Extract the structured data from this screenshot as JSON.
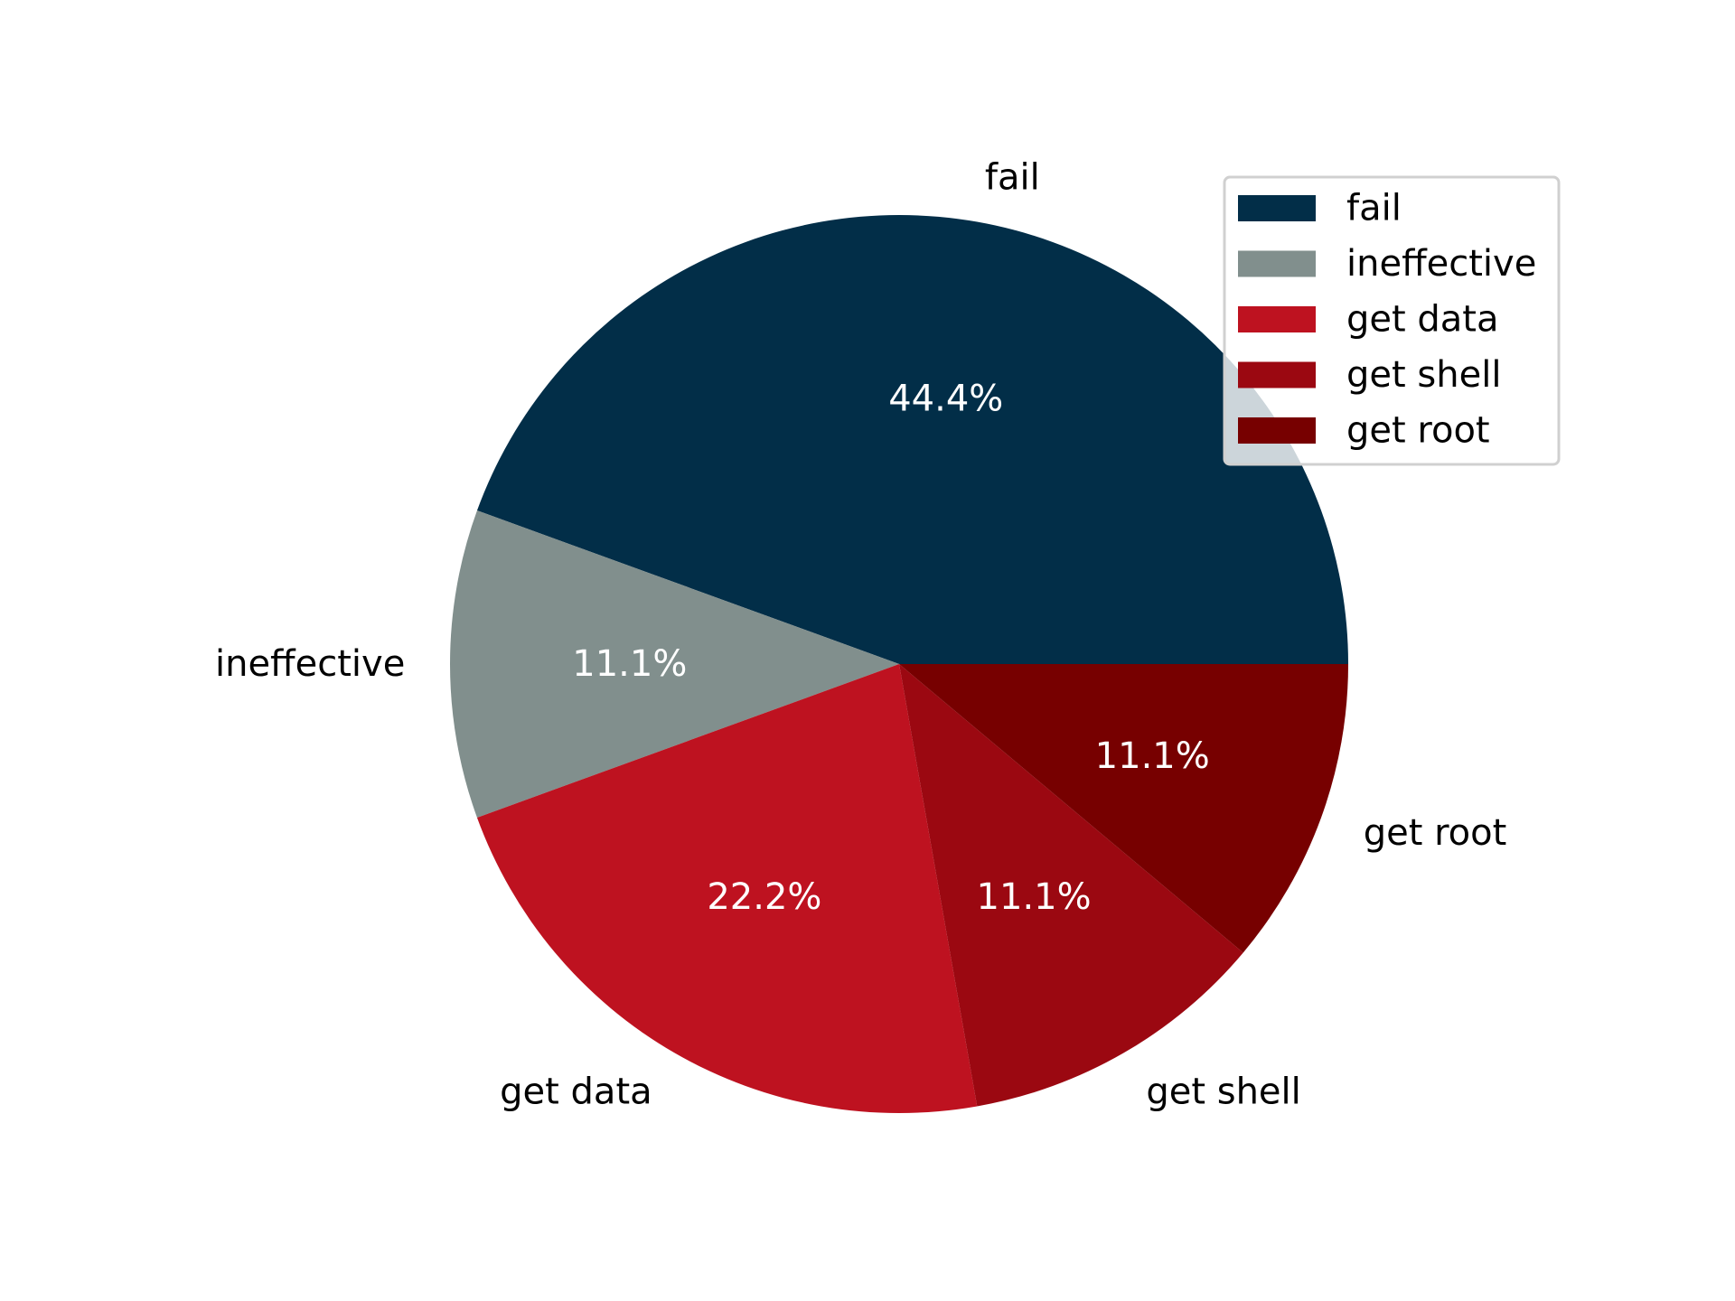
{
  "chart_data": {
    "type": "pie",
    "title": "",
    "categories": [
      "fail",
      "ineffective",
      "get data",
      "get shell",
      "get root"
    ],
    "values": [
      44.4,
      11.1,
      22.2,
      11.1,
      11.1
    ],
    "percent_labels": [
      "44.4%",
      "11.1%",
      "22.2%",
      "11.1%",
      "11.1%"
    ],
    "colors": [
      "#022e48",
      "#818f8d",
      "#be1220",
      "#9b0811",
      "#770000"
    ],
    "start_angle_deg": 0,
    "direction": "counterclockwise",
    "legend": {
      "placement": "top-right",
      "entries": [
        "fail",
        "ineffective",
        "get data",
        "get shell",
        "get root"
      ]
    }
  }
}
